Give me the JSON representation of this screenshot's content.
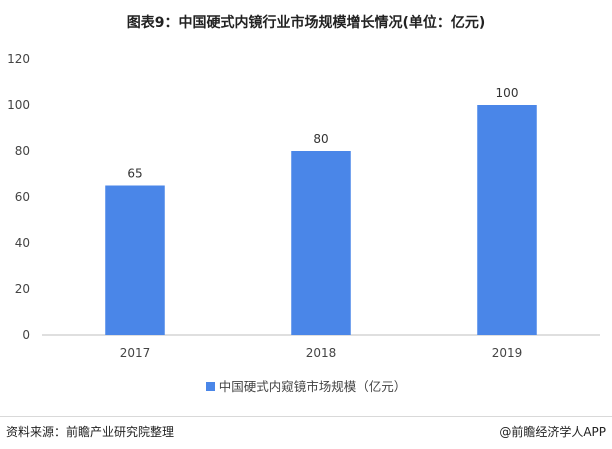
{
  "chart_data": {
    "type": "bar",
    "title": "图表9：中国硬式内镜行业市场规模增长情况(单位：亿元)",
    "categories": [
      "2017",
      "2018",
      "2019"
    ],
    "series": [
      {
        "name": "中国硬式内窥镜市场规模（亿元）",
        "values": [
          65,
          80,
          100
        ],
        "color": "#4a86e8"
      }
    ],
    "yticks": [
      "0",
      "20",
      "40",
      "60",
      "80",
      "100",
      "120"
    ],
    "ylim": [
      0,
      120
    ],
    "grid": false,
    "legend_position": "bottom"
  },
  "footer": {
    "source": "资料来源：前瞻产业研究院整理",
    "credit": "@前瞻经济学人APP"
  },
  "colors": {
    "bar": "#4a86e8",
    "axis": "#bfbfbf",
    "text": "#444444"
  }
}
